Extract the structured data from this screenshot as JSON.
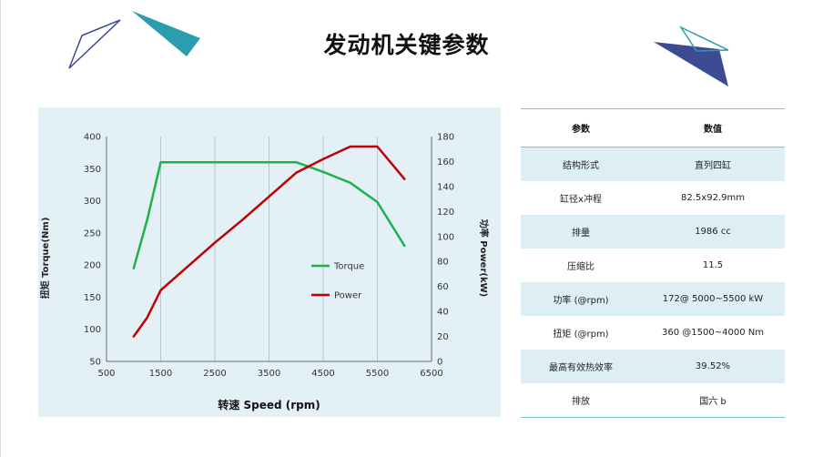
{
  "page": {
    "title": "发动机关键参数"
  },
  "chart_data": {
    "type": "line",
    "title": "",
    "xlabel": "转速 Speed (rpm)",
    "ylabel_left": "扭矩 Torque(Nm)",
    "ylabel_right": "功率 Power(kW)",
    "xlim": [
      500,
      6500
    ],
    "x_ticks": [
      500,
      1500,
      2500,
      3500,
      4500,
      5500,
      6500
    ],
    "ylim_left": [
      50,
      400
    ],
    "y_ticks_left": [
      50,
      100,
      150,
      200,
      250,
      300,
      350,
      400
    ],
    "ylim_right": [
      0,
      180
    ],
    "y_ticks_right": [
      0,
      20,
      40,
      60,
      80,
      100,
      120,
      140,
      160,
      180
    ],
    "grid": "vertical",
    "legend_position": "center-right",
    "series": [
      {
        "name": "Torque",
        "axis": "left",
        "color": "#1fb14a",
        "x": [
          1000,
          1250,
          1500,
          2000,
          2500,
          3000,
          3500,
          4000,
          4500,
          5000,
          5500,
          6000
        ],
        "values": [
          195,
          270,
          360,
          360,
          360,
          360,
          360,
          360,
          345,
          328,
          298,
          230
        ]
      },
      {
        "name": "Power",
        "axis": "right",
        "color": "#c00000",
        "x": [
          1000,
          1250,
          1500,
          2000,
          2500,
          3000,
          3500,
          4000,
          4500,
          5000,
          5500,
          6000
        ],
        "values": [
          20,
          35,
          57,
          76,
          95,
          113,
          132,
          151,
          162,
          172,
          172,
          146
        ]
      }
    ]
  },
  "table": {
    "headers": [
      "参数",
      "数值"
    ],
    "rows": [
      [
        "结构形式",
        "直列四缸"
      ],
      [
        "缸径x冲程",
        "82.5x92.9mm"
      ],
      [
        "排量",
        "1986 cc"
      ],
      [
        "压缩比",
        "11.5"
      ],
      [
        "功率 (@rpm)",
        "172@ 5000~5500 kW"
      ],
      [
        "扭矩 (@rpm)",
        "360 @1500~4000 Nm"
      ],
      [
        "最高有效热效率",
        "39.52%"
      ],
      [
        "排放",
        "国六 b"
      ]
    ]
  },
  "colors": {
    "chart_background": "#e3f1f6",
    "teal": "#2a9eae",
    "navy": "#3d4b93",
    "table_stripe": "#ddeef4"
  }
}
